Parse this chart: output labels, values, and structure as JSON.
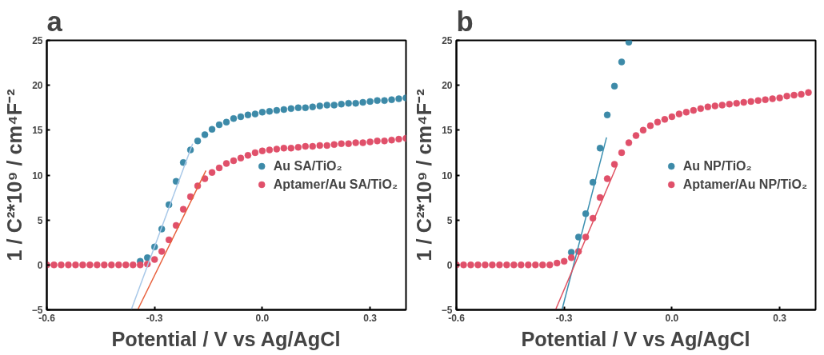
{
  "chart_data": [
    {
      "type": "scatter",
      "title": "a",
      "xlabel": "Potential / V vs Ag/AgCl",
      "ylabel": "1 / C²*10⁹ / cm⁴F⁻²",
      "xlim": [
        -0.6,
        0.4
      ],
      "ylim": [
        -5,
        25
      ],
      "xticks": [
        {
          "value": -0.6,
          "label": "-0.6"
        },
        {
          "value": -0.3,
          "label": "-0.3"
        },
        {
          "value": 0,
          "label": "0.0"
        },
        {
          "value": 0.3,
          "label": "0.3"
        }
      ],
      "yticks": [
        -5,
        0,
        5,
        10,
        15,
        20,
        25
      ],
      "grid": false,
      "legend": "right",
      "marker": "circle",
      "series": [
        {
          "name": "Au SA/TiO₂",
          "color": "#3d8aa8",
          "x": [
            -0.34,
            -0.32,
            -0.3,
            -0.28,
            -0.26,
            -0.24,
            -0.22,
            -0.2,
            -0.18,
            -0.16,
            -0.14,
            -0.12,
            -0.1,
            -0.08,
            -0.06,
            -0.04,
            -0.02,
            0,
            0.02,
            0.04,
            0.06,
            0.08,
            0.1,
            0.12,
            0.14,
            0.16,
            0.18,
            0.2,
            0.22,
            0.24,
            0.26,
            0.28,
            0.3,
            0.32,
            0.34,
            0.36,
            0.38,
            0.4
          ],
          "values": [
            0.4,
            0.8,
            2.0,
            4.0,
            6.7,
            9.3,
            11.4,
            12.8,
            13.8,
            14.5,
            15.1,
            15.6,
            15.9,
            16.3,
            16.5,
            16.7,
            16.8,
            17.0,
            17.1,
            17.2,
            17.3,
            17.4,
            17.5,
            17.5,
            17.6,
            17.7,
            17.8,
            17.8,
            17.9,
            18.0,
            18.0,
            18.1,
            18.2,
            18.3,
            18.3,
            18.4,
            18.5,
            18.6
          ]
        },
        {
          "name": "Aptamer/Au SA/TiO₂",
          "color": "#e0506a",
          "x": [
            -0.6,
            -0.58,
            -0.56,
            -0.54,
            -0.52,
            -0.5,
            -0.48,
            -0.46,
            -0.44,
            -0.42,
            -0.4,
            -0.38,
            -0.36,
            -0.34,
            -0.32,
            -0.3,
            -0.28,
            -0.26,
            -0.24,
            -0.22,
            -0.2,
            -0.18,
            -0.16,
            -0.14,
            -0.12,
            -0.1,
            -0.08,
            -0.06,
            -0.04,
            -0.02,
            0,
            0.02,
            0.04,
            0.06,
            0.08,
            0.1,
            0.12,
            0.14,
            0.16,
            0.18,
            0.2,
            0.22,
            0.24,
            0.26,
            0.28,
            0.3,
            0.32,
            0.34,
            0.36,
            0.38,
            0.4
          ],
          "values": [
            0,
            0,
            0,
            0,
            0,
            0,
            0,
            0,
            0,
            0,
            0,
            0,
            0,
            0,
            0.1,
            0.6,
            1.5,
            2.8,
            4.4,
            6.2,
            7.6,
            8.8,
            9.6,
            10.3,
            10.8,
            11.3,
            11.6,
            11.9,
            12.2,
            12.5,
            12.7,
            12.8,
            12.9,
            13.0,
            13.0,
            13.1,
            13.2,
            13.2,
            13.3,
            13.3,
            13.4,
            13.5,
            13.5,
            13.6,
            13.6,
            13.7,
            13.8,
            13.8,
            13.9,
            14.0,
            14.1
          ]
        },
        {
          "type": "line",
          "marker": "none",
          "color": "#a8c8e8",
          "x": [
            -0.365,
            -0.194
          ],
          "values": [
            -5,
            13.5
          ]
        },
        {
          "type": "line",
          "marker": "none",
          "color": "#e8603c",
          "x": [
            -0.347,
            -0.157
          ],
          "values": [
            -5,
            10.5
          ]
        }
      ]
    },
    {
      "type": "scatter",
      "title": "b",
      "xlabel": "Potential / V vs Ag/AgCl",
      "ylabel": "1 / C²*10⁹ / cm⁴F⁻²",
      "xlim": [
        -0.6,
        0.4
      ],
      "ylim": [
        -5,
        25
      ],
      "xticks": [
        {
          "value": -0.6,
          "label": "-0.6"
        },
        {
          "value": -0.3,
          "label": "-0.3"
        },
        {
          "value": 0,
          "label": "0.0"
        },
        {
          "value": 0.3,
          "label": "0.3"
        }
      ],
      "yticks": [
        -5,
        0,
        5,
        10,
        15,
        20,
        25
      ],
      "grid": false,
      "legend": "right",
      "marker": "circle",
      "series": [
        {
          "name": "Au NP/TiO₂",
          "color": "#3d8aa8",
          "x": [
            -0.28,
            -0.26,
            -0.24,
            -0.22,
            -0.2,
            -0.18,
            -0.16,
            -0.14,
            -0.12
          ],
          "values": [
            1.4,
            3.1,
            5.7,
            9.2,
            13.0,
            16.7,
            19.9,
            22.6,
            24.8
          ]
        },
        {
          "name": "Aptamer/Au NP/TiO₂",
          "color": "#e0506a",
          "x": [
            -0.6,
            -0.58,
            -0.56,
            -0.54,
            -0.52,
            -0.5,
            -0.48,
            -0.46,
            -0.44,
            -0.42,
            -0.4,
            -0.38,
            -0.36,
            -0.34,
            -0.32,
            -0.3,
            -0.28,
            -0.26,
            -0.24,
            -0.22,
            -0.2,
            -0.18,
            -0.16,
            -0.14,
            -0.12,
            -0.1,
            -0.08,
            -0.06,
            -0.04,
            -0.02,
            0,
            0.02,
            0.04,
            0.06,
            0.08,
            0.1,
            0.12,
            0.14,
            0.16,
            0.18,
            0.2,
            0.22,
            0.24,
            0.26,
            0.28,
            0.3,
            0.32,
            0.34,
            0.36,
            0.38
          ],
          "values": [
            0,
            0,
            0,
            0,
            0,
            0,
            0,
            0,
            0,
            0,
            0,
            0,
            0,
            0,
            0.2,
            0.4,
            0.8,
            1.5,
            3.1,
            5.2,
            7.5,
            9.6,
            11.2,
            12.5,
            13.6,
            14.4,
            15.0,
            15.5,
            15.9,
            16.2,
            16.5,
            16.8,
            17.0,
            17.2,
            17.4,
            17.6,
            17.7,
            17.8,
            17.9,
            18.0,
            18.1,
            18.2,
            18.3,
            18.4,
            18.5,
            18.6,
            18.8,
            18.9,
            19.0,
            19.2
          ]
        },
        {
          "type": "line",
          "marker": "none",
          "color": "#3a8fb0",
          "x": [
            -0.306,
            -0.182
          ],
          "values": [
            -5,
            14.2
          ]
        },
        {
          "type": "line",
          "marker": "none",
          "color": "#e05060",
          "x": [
            -0.324,
            -0.154
          ],
          "values": [
            -5,
            11.0
          ]
        }
      ]
    }
  ]
}
